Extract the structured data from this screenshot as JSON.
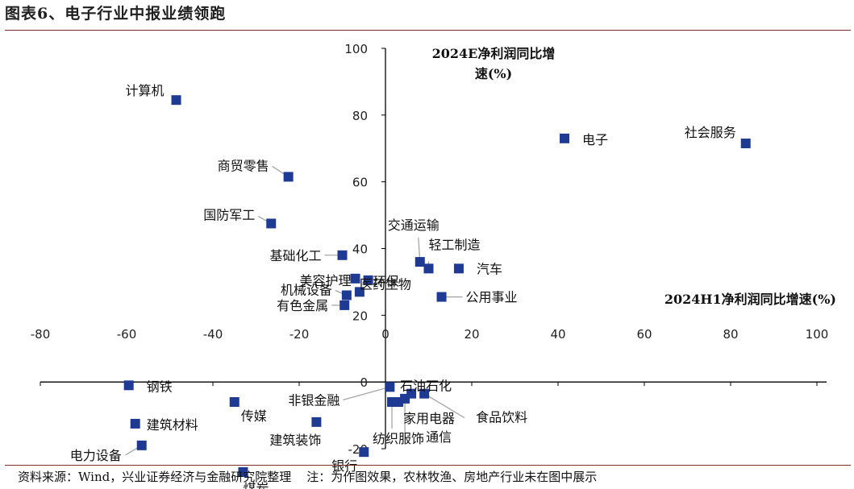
{
  "header": {
    "title": "图表6、电子行业中报业绩领跑"
  },
  "footer": {
    "note": "资料来源：Wind，兴业证券经济与金融研究院整理    注：为作图效果，农林牧渔、房地产行业未在图中展示"
  },
  "chart_data": {
    "type": "scatter",
    "xlabel": "2024H1净利润同比增速(%)",
    "ylabel_line1": "2024E净利润同比增",
    "ylabel_line2": "速(%)",
    "xlim": [
      -80,
      100
    ],
    "ylim": [
      -20,
      100
    ],
    "xticks": [
      "-80",
      "-60",
      "-40",
      "-20",
      "0",
      "20",
      "40",
      "60",
      "80",
      "100"
    ],
    "yticks": [
      "-20",
      "0",
      "20",
      "40",
      "60",
      "80",
      "100"
    ],
    "marker_color": "#1f3a93",
    "points": [
      {
        "name": "计算机",
        "x": -48.5,
        "y": 84.5
      },
      {
        "name": "商贸零售",
        "x": -22.5,
        "y": 61.5
      },
      {
        "name": "国防军工",
        "x": -26.5,
        "y": 47.5
      },
      {
        "name": "基础化工",
        "x": -10,
        "y": 38
      },
      {
        "name": "美容护理",
        "x": -7,
        "y": 31
      },
      {
        "name": "环保",
        "x": -4,
        "y": 30.5
      },
      {
        "name": "机械设备",
        "x": -9,
        "y": 26
      },
      {
        "name": "医药生物",
        "x": -6,
        "y": 27
      },
      {
        "name": "有色金属",
        "x": -9.5,
        "y": 23
      },
      {
        "name": "钢铁",
        "x": -59.5,
        "y": -1
      },
      {
        "name": "非银金融",
        "x": 1,
        "y": -1.5
      },
      {
        "name": "石油石化",
        "x": 6,
        "y": -3.5
      },
      {
        "name": "传媒",
        "x": -35,
        "y": -6
      },
      {
        "name": "纺织服饰",
        "x": 1.5,
        "y": -6
      },
      {
        "name": "家用电器",
        "x": 3,
        "y": -6
      },
      {
        "name": "通信",
        "x": 4.5,
        "y": -5
      },
      {
        "name": "食品饮料",
        "x": 9,
        "y": -3.5
      },
      {
        "name": "建筑材料",
        "x": -58,
        "y": -12.5
      },
      {
        "name": "建筑装饰",
        "x": -16,
        "y": -12
      },
      {
        "name": "电力设备",
        "x": -56.5,
        "y": -19
      },
      {
        "name": "银行",
        "x": -5,
        "y": -21
      },
      {
        "name": "煤炭",
        "x": -33,
        "y": -27
      },
      {
        "name": "交通运输",
        "x": 8,
        "y": 36
      },
      {
        "name": "轻工制造",
        "x": 10,
        "y": 34
      },
      {
        "name": "汽车",
        "x": 17,
        "y": 34
      },
      {
        "name": "公用事业",
        "x": 13,
        "y": 25.5
      },
      {
        "name": "电子",
        "x": 41.5,
        "y": 73
      },
      {
        "name": "社会服务",
        "x": 83.5,
        "y": 71.5
      }
    ]
  }
}
